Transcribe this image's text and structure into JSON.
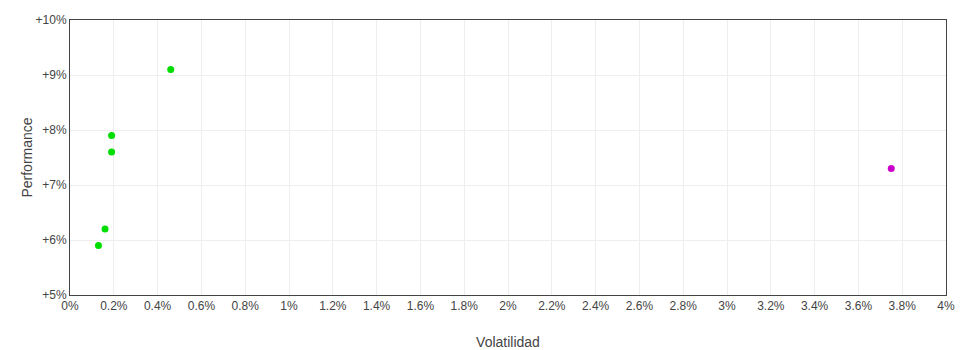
{
  "chart_data": {
    "type": "scatter",
    "x_label": "Volatilidad",
    "y_label": "Performance",
    "series": [
      {
        "color": "#00dd00",
        "x": [
          0.0046,
          0.0019,
          0.0019,
          0.0016,
          0.0013
        ],
        "values": [
          0.091,
          0.079,
          0.076,
          0.062,
          0.059
        ]
      },
      {
        "color": "#cc00cc",
        "x": [
          0.0375
        ],
        "values": [
          0.073
        ]
      }
    ],
    "xlim": [
      0,
      0.04
    ],
    "ylim": [
      0.05,
      0.1
    ],
    "xticks": [
      {
        "value": 0.0,
        "label": "0%"
      },
      {
        "value": 0.002,
        "label": "0.2%"
      },
      {
        "value": 0.004,
        "label": "0.4%"
      },
      {
        "value": 0.006,
        "label": "0.6%"
      },
      {
        "value": 0.008,
        "label": "0.8%"
      },
      {
        "value": 0.01,
        "label": "1%"
      },
      {
        "value": 0.012,
        "label": "1.2%"
      },
      {
        "value": 0.014,
        "label": "1.4%"
      },
      {
        "value": 0.016,
        "label": "1.6%"
      },
      {
        "value": 0.018,
        "label": "1.8%"
      },
      {
        "value": 0.02,
        "label": "2%"
      },
      {
        "value": 0.022,
        "label": "2.2%"
      },
      {
        "value": 0.024,
        "label": "2.4%"
      },
      {
        "value": 0.026,
        "label": "2.6%"
      },
      {
        "value": 0.028,
        "label": "2.8%"
      },
      {
        "value": 0.03,
        "label": "3%"
      },
      {
        "value": 0.032,
        "label": "3.2%"
      },
      {
        "value": 0.034,
        "label": "3.4%"
      },
      {
        "value": 0.036,
        "label": "3.6%"
      },
      {
        "value": 0.038,
        "label": "3.8%"
      },
      {
        "value": 0.04,
        "label": "4%"
      }
    ],
    "yticks": [
      {
        "value": 0.05,
        "label": "+5%"
      },
      {
        "value": 0.06,
        "label": "+6%"
      },
      {
        "value": 0.07,
        "label": "+7%"
      },
      {
        "value": 0.08,
        "label": "+8%"
      },
      {
        "value": 0.09,
        "label": "+9%"
      },
      {
        "value": 0.1,
        "label": "+10%"
      }
    ],
    "grid": true
  }
}
